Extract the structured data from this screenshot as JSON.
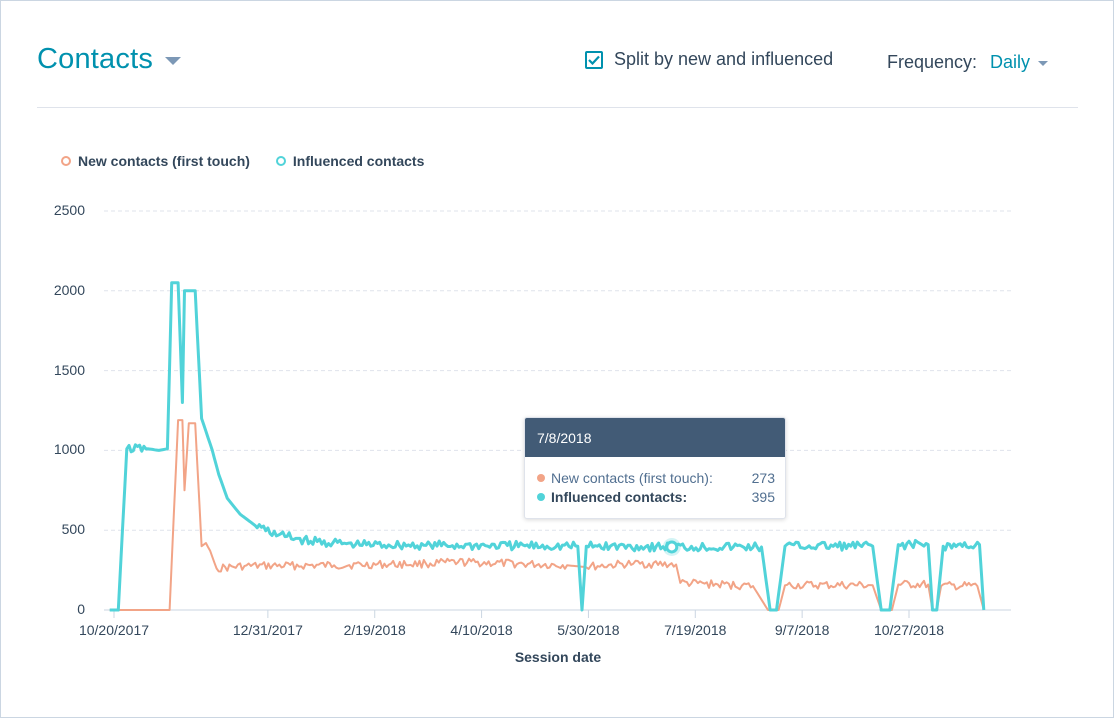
{
  "header": {
    "title": "Contacts",
    "split_label": "Split by new and influenced",
    "split_checked": true,
    "frequency_label": "Frequency:",
    "frequency_value": "Daily"
  },
  "colors": {
    "new_contacts": "#f2a487",
    "influenced_contacts": "#51d3d9",
    "accent": "#0091ae",
    "tooltip_header": "#425b76"
  },
  "tooltip": {
    "date": "7/8/2018",
    "rows": [
      {
        "label": "New contacts (first touch):",
        "value": "273"
      },
      {
        "label": "Influenced contacts:",
        "value": "395"
      }
    ]
  },
  "chart_data": {
    "type": "line",
    "title": "",
    "xlabel": "Session date",
    "ylabel": "",
    "ylim": [
      0,
      2500
    ],
    "y_ticks": [
      "0",
      "500",
      "1000",
      "1500",
      "2000",
      "2500"
    ],
    "x_ticks": [
      "10/20/2017",
      "12/31/2017",
      "2/19/2018",
      "4/10/2018",
      "5/30/2018",
      "7/19/2018",
      "9/7/2018",
      "10/27/2018"
    ],
    "legend_position": "top-left",
    "grid": true,
    "series": [
      {
        "name": "New contacts (first touch)",
        "color": "#f2a487",
        "points": [
          [
            "10/18/2017",
            0
          ],
          [
            "10/20/2017",
            0
          ],
          [
            "11/15/2017",
            0
          ],
          [
            "11/19/2017",
            1190
          ],
          [
            "11/21/2017",
            1190
          ],
          [
            "11/22/2017",
            750
          ],
          [
            "11/24/2017",
            1170
          ],
          [
            "11/27/2017",
            1170
          ],
          [
            "11/30/2017",
            400
          ],
          [
            "12/2/2017",
            420
          ],
          [
            "12/4/2017",
            370
          ],
          [
            "12/7/2017",
            260
          ],
          [
            "12/20/2017",
            275
          ],
          [
            "1/31/2018",
            280
          ],
          [
            "3/15/2018",
            290
          ],
          [
            "3/30/2018",
            300
          ],
          [
            "5/20/2018",
            280
          ],
          [
            "5/28/2018",
            270
          ],
          [
            "6/20/2018",
            290
          ],
          [
            "7/10/2018",
            285
          ],
          [
            "7/12/2018",
            170
          ],
          [
            "8/15/2018",
            150
          ],
          [
            "8/22/2018",
            0
          ],
          [
            "8/27/2018",
            0
          ],
          [
            "8/30/2018",
            155
          ],
          [
            "10/10/2018",
            155
          ],
          [
            "10/14/2018",
            0
          ],
          [
            "10/19/2018",
            0
          ],
          [
            "10/22/2018",
            160
          ],
          [
            "11/5/2018",
            160
          ],
          [
            "11/7/2018",
            0
          ],
          [
            "11/9/2018",
            0
          ],
          [
            "11/11/2018",
            150
          ],
          [
            "11/28/2018",
            150
          ],
          [
            "12/1/2018",
            0
          ]
        ]
      },
      {
        "name": "Influenced contacts",
        "color": "#51d3d9",
        "points": [
          [
            "10/18/2017",
            0
          ],
          [
            "10/22/2017",
            0
          ],
          [
            "10/26/2017",
            1010
          ],
          [
            "11/5/2017",
            1010
          ],
          [
            "11/10/2017",
            1000
          ],
          [
            "11/14/2017",
            1010
          ],
          [
            "11/16/2017",
            2050
          ],
          [
            "11/19/2017",
            2050
          ],
          [
            "11/21/2017",
            1300
          ],
          [
            "11/22/2017",
            2000
          ],
          [
            "11/27/2017",
            2000
          ],
          [
            "11/30/2017",
            1200
          ],
          [
            "12/5/2017",
            1000
          ],
          [
            "12/8/2017",
            850
          ],
          [
            "12/12/2017",
            700
          ],
          [
            "12/18/2017",
            600
          ],
          [
            "12/25/2017",
            530
          ],
          [
            "1/5/2018",
            470
          ],
          [
            "1/20/2018",
            430
          ],
          [
            "2/10/2018",
            410
          ],
          [
            "3/15/2018",
            405
          ],
          [
            "5/25/2018",
            400
          ],
          [
            "5/27/2018",
            0
          ],
          [
            "5/29/2018",
            400
          ],
          [
            "7/8/2018",
            395
          ],
          [
            "8/19/2018",
            395
          ],
          [
            "8/23/2018",
            0
          ],
          [
            "8/26/2018",
            0
          ],
          [
            "8/30/2018",
            400
          ],
          [
            "10/10/2018",
            400
          ],
          [
            "10/14/2018",
            0
          ],
          [
            "10/18/2018",
            0
          ],
          [
            "10/22/2018",
            410
          ],
          [
            "11/5/2018",
            410
          ],
          [
            "11/7/2018",
            0
          ],
          [
            "11/9/2018",
            0
          ],
          [
            "11/12/2018",
            400
          ],
          [
            "11/29/2018",
            410
          ],
          [
            "12/1/2018",
            0
          ]
        ]
      }
    ],
    "highlight": {
      "date": "7/8/2018",
      "new": 273,
      "influenced": 395
    }
  }
}
